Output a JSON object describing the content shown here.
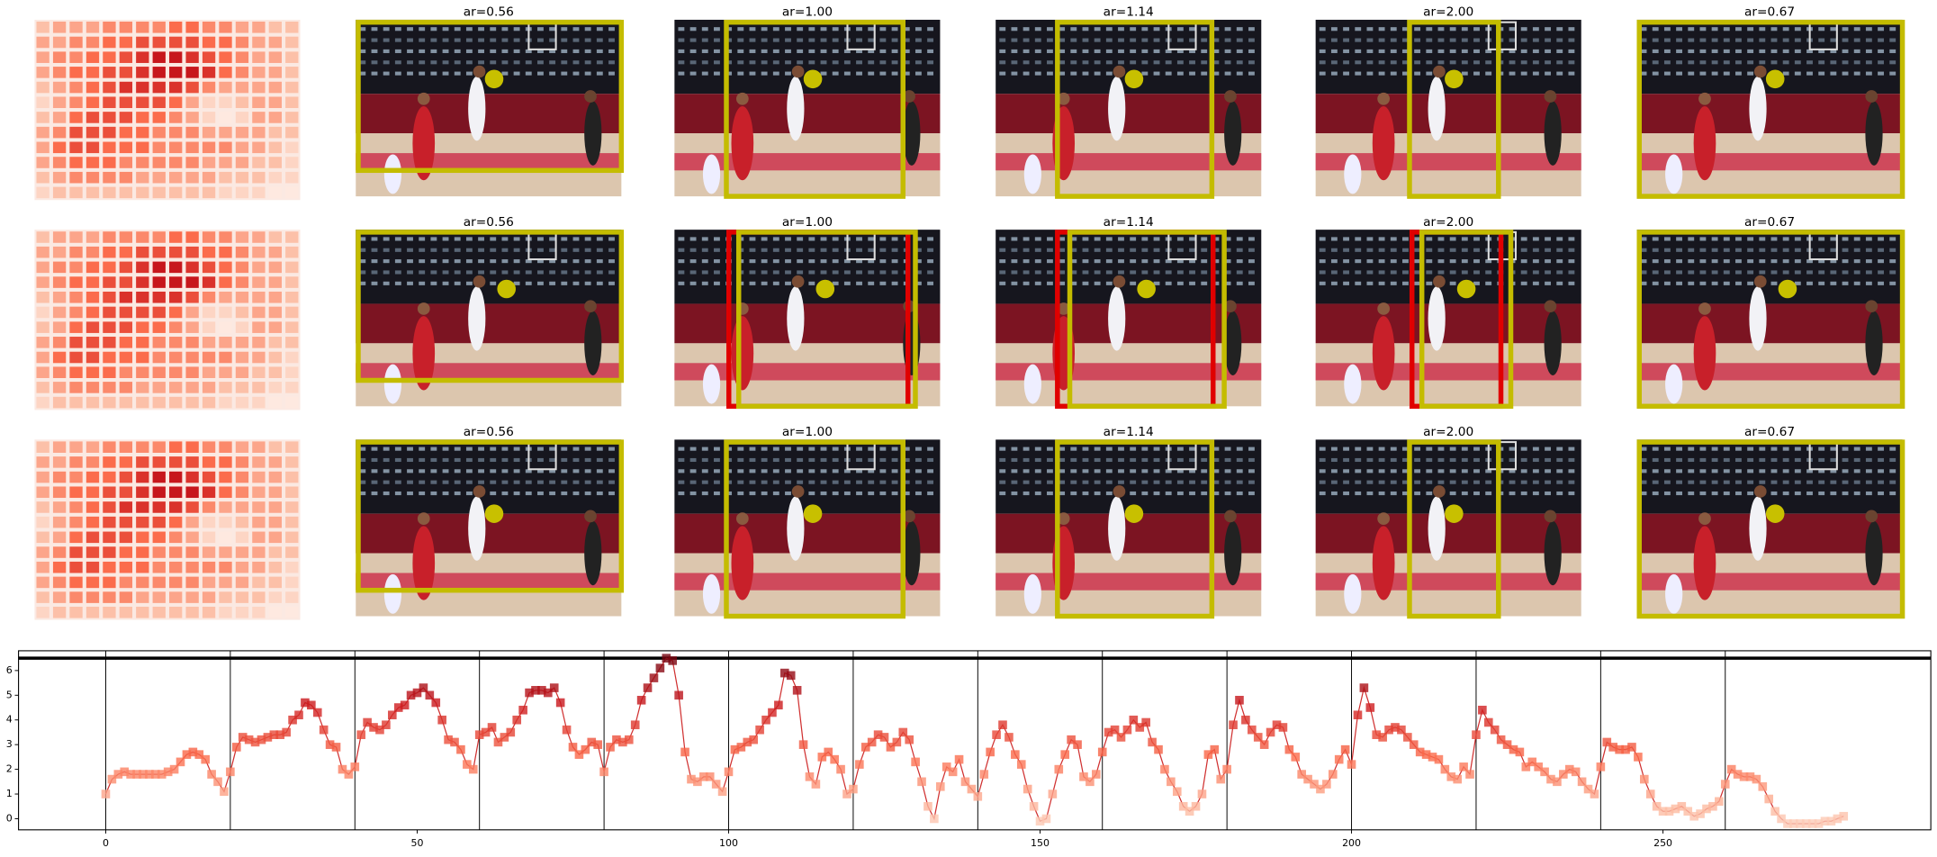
{
  "panels": {
    "rows": [
      {
        "titles": [
          "ar=0.56",
          "ar=1.00",
          "ar=1.14",
          "ar=2.00",
          "ar=0.67"
        ]
      },
      {
        "titles": [
          "ar=0.56",
          "ar=1.00",
          "ar=1.14",
          "ar=2.00",
          "ar=0.67"
        ]
      },
      {
        "titles": [
          "ar=0.56",
          "ar=1.00",
          "ar=1.14",
          "ar=2.00",
          "ar=0.67"
        ]
      }
    ]
  },
  "chart_data": [
    {
      "type": "heatmap",
      "colormap": "Reds",
      "clim": [
        0,
        9
      ],
      "values": [
        [
          2,
          3,
          3,
          3,
          4,
          4,
          4,
          4,
          5,
          5,
          4,
          4,
          3,
          3,
          2,
          2
        ],
        [
          3,
          3,
          4,
          4,
          5,
          5,
          6,
          6,
          6,
          6,
          5,
          5,
          4,
          3,
          3,
          2
        ],
        [
          3,
          4,
          4,
          5,
          5,
          6,
          7,
          8,
          8,
          7,
          6,
          5,
          4,
          3,
          3,
          2
        ],
        [
          3,
          4,
          5,
          5,
          6,
          6,
          7,
          8,
          8,
          8,
          7,
          5,
          4,
          3,
          3,
          2
        ],
        [
          2,
          3,
          4,
          5,
          6,
          7,
          7,
          7,
          7,
          6,
          4,
          3,
          3,
          3,
          3,
          2
        ],
        [
          1,
          3,
          4,
          5,
          6,
          6,
          6,
          6,
          5,
          3,
          1,
          1,
          2,
          3,
          3,
          2
        ],
        [
          2,
          3,
          5,
          6,
          6,
          6,
          5,
          5,
          4,
          3,
          1,
          0,
          1,
          3,
          3,
          2
        ],
        [
          3,
          4,
          6,
          6,
          6,
          5,
          5,
          4,
          4,
          4,
          3,
          3,
          3,
          3,
          2,
          2
        ],
        [
          3,
          5,
          6,
          6,
          5,
          5,
          5,
          4,
          4,
          4,
          4,
          4,
          3,
          3,
          2,
          1
        ],
        [
          3,
          4,
          5,
          5,
          5,
          4,
          4,
          4,
          4,
          4,
          3,
          3,
          3,
          2,
          2,
          1
        ],
        [
          2,
          3,
          4,
          4,
          4,
          4,
          3,
          3,
          3,
          3,
          3,
          2,
          2,
          2,
          1,
          1
        ],
        [
          1,
          2,
          2,
          2,
          2,
          2,
          2,
          2,
          2,
          2,
          2,
          1,
          1,
          1,
          0,
          0
        ]
      ]
    },
    {
      "type": "line",
      "colormap": "Reds",
      "color": "#d03030",
      "xlim": [
        -14,
        293
      ],
      "ylim": [
        -0.45,
        6.8
      ],
      "xticks": [
        0,
        50,
        100,
        150,
        200,
        250
      ],
      "yticks": [
        0,
        1,
        2,
        3,
        4,
        5,
        6
      ],
      "hline": 6.5,
      "vlines": [
        0,
        20,
        40,
        60,
        80,
        100,
        120,
        140,
        160,
        180,
        200,
        220,
        240,
        260
      ],
      "values": [
        1.0,
        1.6,
        1.8,
        1.9,
        1.8,
        1.8,
        1.8,
        1.8,
        1.8,
        1.8,
        1.9,
        2.0,
        2.3,
        2.6,
        2.7,
        2.6,
        2.4,
        1.8,
        1.5,
        1.1,
        1.9,
        2.9,
        3.3,
        3.2,
        3.1,
        3.2,
        3.3,
        3.4,
        3.4,
        3.5,
        4.0,
        4.2,
        4.7,
        4.6,
        4.3,
        3.6,
        3.0,
        2.9,
        2.0,
        1.8,
        2.1,
        3.4,
        3.9,
        3.7,
        3.6,
        3.8,
        4.2,
        4.5,
        4.6,
        5.0,
        5.1,
        5.3,
        5.0,
        4.7,
        4.0,
        3.2,
        3.1,
        2.8,
        2.2,
        2.0,
        3.4,
        3.5,
        3.7,
        3.1,
        3.3,
        3.5,
        4.0,
        4.4,
        5.1,
        5.2,
        5.2,
        5.1,
        5.3,
        4.7,
        3.6,
        2.9,
        2.6,
        2.8,
        3.1,
        3.0,
        1.9,
        2.9,
        3.2,
        3.1,
        3.2,
        3.8,
        4.8,
        5.3,
        5.7,
        6.1,
        6.5,
        6.4,
        5.0,
        2.7,
        1.6,
        1.5,
        1.7,
        1.7,
        1.4,
        1.1,
        1.9,
        2.8,
        2.9,
        3.1,
        3.2,
        3.6,
        4.0,
        4.3,
        4.6,
        5.9,
        5.8,
        5.2,
        3.0,
        1.7,
        1.4,
        2.5,
        2.7,
        2.4,
        2.0,
        1.0,
        1.2,
        2.2,
        2.9,
        3.1,
        3.4,
        3.3,
        2.9,
        3.1,
        3.5,
        3.2,
        2.3,
        1.5,
        0.5,
        0.0,
        1.3,
        2.1,
        1.9,
        2.4,
        1.5,
        1.2,
        0.9,
        1.8,
        2.7,
        3.4,
        3.8,
        3.3,
        2.6,
        2.2,
        1.2,
        0.5,
        -0.1,
        0.0,
        1.0,
        2.0,
        2.6,
        3.2,
        3.0,
        1.7,
        1.5,
        1.8,
        2.7,
        3.5,
        3.6,
        3.3,
        3.6,
        4.0,
        3.7,
        3.9,
        3.1,
        2.8,
        2.0,
        1.5,
        1.1,
        0.5,
        0.3,
        0.5,
        1.0,
        2.6,
        2.8,
        1.6,
        2.0,
        3.8,
        4.8,
        4.0,
        3.6,
        3.3,
        3.0,
        3.5,
        3.8,
        3.7,
        2.8,
        2.5,
        1.8,
        1.6,
        1.4,
        1.2,
        1.4,
        1.8,
        2.4,
        2.8,
        2.2,
        4.2,
        5.3,
        4.5,
        3.4,
        3.3,
        3.6,
        3.7,
        3.6,
        3.3,
        3.0,
        2.7,
        2.6,
        2.5,
        2.4,
        2.0,
        1.7,
        1.6,
        2.1,
        1.8,
        3.4,
        4.4,
        3.9,
        3.6,
        3.2,
        3.0,
        2.8,
        2.7,
        2.1,
        2.3,
        2.1,
        1.9,
        1.6,
        1.5,
        1.8,
        2.0,
        1.9,
        1.5,
        1.2,
        1.0,
        2.1,
        3.1,
        2.9,
        2.8,
        2.8,
        2.9,
        2.5,
        1.6,
        1.0,
        0.5,
        0.3,
        0.3,
        0.4,
        0.5,
        0.3,
        0.1,
        0.2,
        0.4,
        0.5,
        0.7,
        1.4,
        2.0,
        1.8,
        1.7,
        1.7,
        1.6,
        1.3,
        0.8,
        0.3,
        0.0,
        -0.2,
        -0.2,
        -0.2,
        -0.2,
        -0.2,
        -0.2,
        -0.1,
        -0.1,
        0.0,
        0.1
      ]
    }
  ]
}
